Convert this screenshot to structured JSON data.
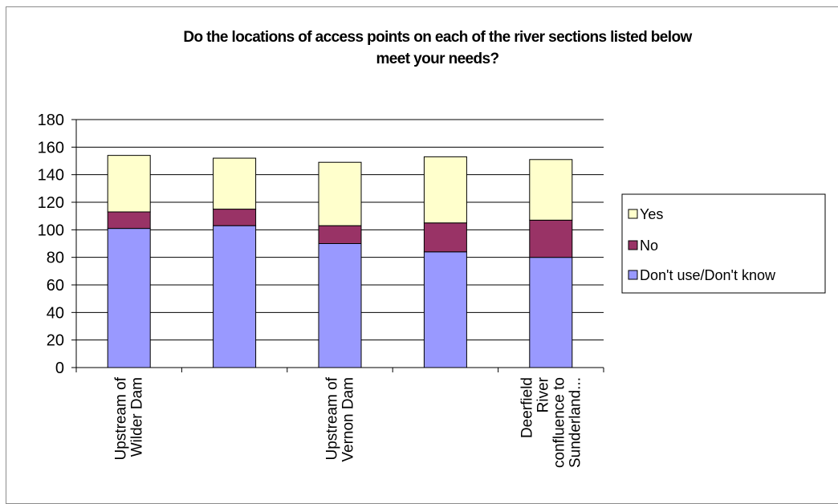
{
  "chart_data": {
    "type": "bar",
    "stacked": true,
    "title_lines": [
      "Do the locations of access points on each of the river sections listed below",
      "meet your needs?"
    ],
    "categories": [
      {
        "label": "Upstream of Wilder Dam",
        "lines": [
          "Upstream of",
          "Wilder Dam"
        ]
      },
      {
        "label": "",
        "lines": []
      },
      {
        "label": "Upstream of Vernon Dam",
        "lines": [
          "Upstream of",
          "Vernon Dam"
        ]
      },
      {
        "label": "",
        "lines": []
      },
      {
        "label": "Deerfield River confluence to Sunderland...",
        "lines": [
          "Deerfield",
          "River",
          "confluence to",
          "Sunderland..."
        ]
      }
    ],
    "series": [
      {
        "name": "Don't use/Don't know",
        "color": "#9999ff",
        "values": [
          101,
          103,
          90,
          84,
          80
        ]
      },
      {
        "name": "No",
        "color": "#993366",
        "values": [
          12,
          12,
          13,
          21,
          27
        ]
      },
      {
        "name": "Yes",
        "color": "#ffffcc",
        "values": [
          41,
          37,
          46,
          48,
          44
        ]
      }
    ],
    "legend_order": [
      "Yes",
      "No",
      "Don't use/Don't know"
    ],
    "legend_position": "right",
    "ylim": [
      0,
      180
    ],
    "yticks": [
      0,
      20,
      40,
      60,
      80,
      100,
      120,
      140,
      160,
      180
    ],
    "grid": true,
    "xlabel": "",
    "ylabel": ""
  }
}
